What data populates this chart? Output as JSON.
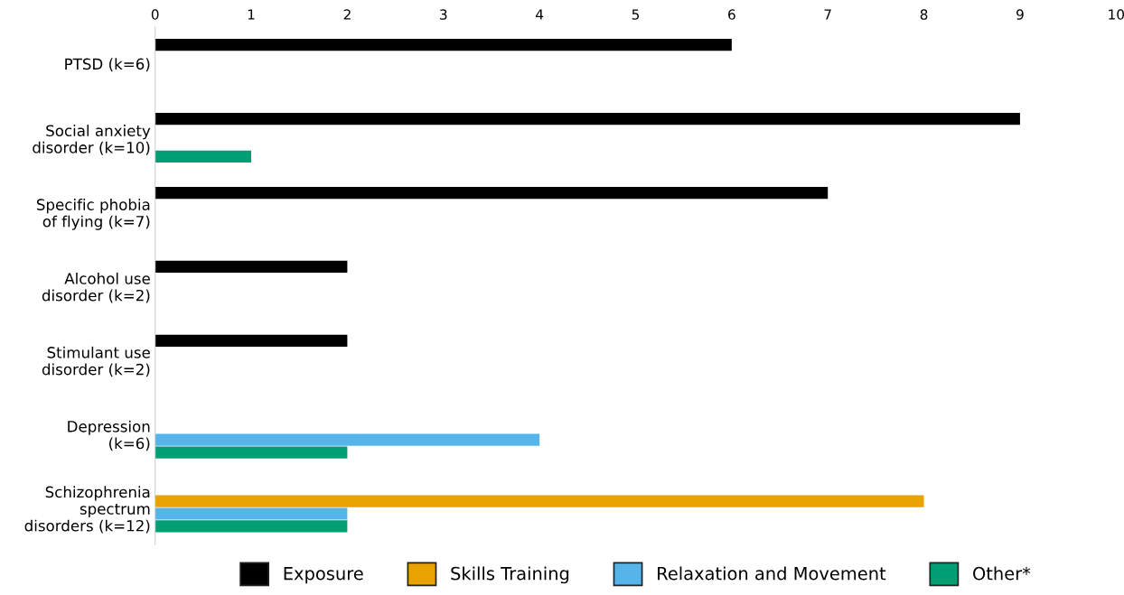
{
  "chart_data": {
    "type": "bar",
    "orientation": "horizontal",
    "categories": [
      "PTSD (k=6)",
      "Social anxiety\ndisorder (k=10)",
      "Specific phobia\nof flying (k=7)",
      "Alcohol use\ndisorder (k=2)",
      "Stimulant use\ndisorder (k=2)",
      "Depression\n(k=6)",
      "Schizophrenia\nspectrum\ndisorders (k=12)"
    ],
    "series": [
      {
        "name": "Exposure",
        "color": "#000000",
        "values": [
          6,
          9,
          7,
          2,
          2,
          null,
          null
        ]
      },
      {
        "name": "Skills Training",
        "color": "#e8a202",
        "values": [
          null,
          null,
          null,
          null,
          null,
          null,
          8
        ]
      },
      {
        "name": "Relaxation and Movement",
        "color": "#56b4e9",
        "values": [
          null,
          null,
          null,
          null,
          null,
          4,
          2
        ]
      },
      {
        "name": "Other*",
        "color": "#009e73",
        "values": [
          null,
          1,
          null,
          null,
          null,
          2,
          2
        ]
      }
    ],
    "xlim": [
      0,
      10
    ],
    "xticks": [
      0,
      1,
      2,
      3,
      4,
      5,
      6,
      7,
      8,
      9,
      10
    ],
    "grid": false,
    "legend": "bottom"
  }
}
